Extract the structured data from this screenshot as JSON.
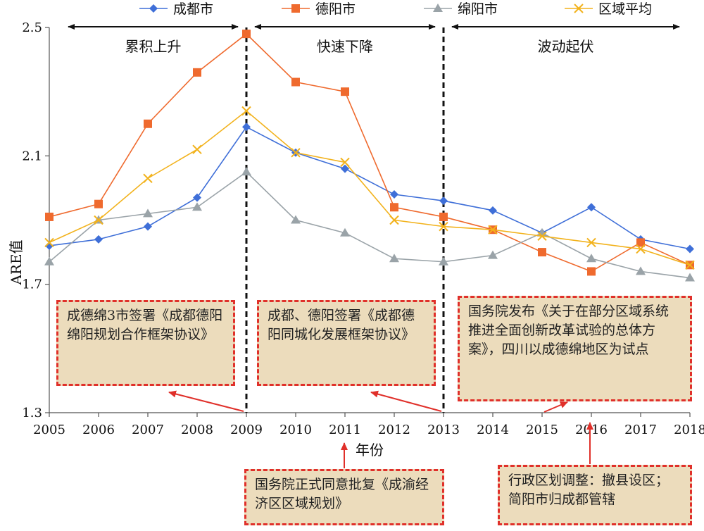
{
  "chart_data": {
    "type": "line",
    "x": [
      "2005",
      "2006",
      "2007",
      "2008",
      "2009",
      "2010",
      "2011",
      "2012",
      "2013",
      "2014",
      "2015",
      "2016",
      "2017",
      "2018"
    ],
    "series": [
      {
        "name": "成都市",
        "color": "#3f6fd8",
        "marker": "diamond",
        "values": [
          1.82,
          1.84,
          1.88,
          1.97,
          2.19,
          2.11,
          2.06,
          1.98,
          1.96,
          1.93,
          1.86,
          1.94,
          1.84,
          1.81
        ]
      },
      {
        "name": "德阳市",
        "color": "#ef6a2e",
        "marker": "square",
        "values": [
          1.91,
          1.95,
          2.2,
          2.36,
          2.48,
          2.33,
          2.3,
          1.94,
          1.91,
          1.87,
          1.8,
          1.74,
          1.83,
          1.76
        ]
      },
      {
        "name": "绵阳市",
        "color": "#9aa3a8",
        "marker": "triangle",
        "values": [
          1.77,
          1.9,
          1.92,
          1.94,
          2.05,
          1.9,
          1.86,
          1.78,
          1.77,
          1.79,
          1.86,
          1.78,
          1.74,
          1.72
        ]
      },
      {
        "name": "区域平均",
        "color": "#f2b21c",
        "marker": "x",
        "values": [
          1.83,
          1.9,
          2.03,
          2.12,
          2.24,
          2.11,
          2.08,
          1.9,
          1.88,
          1.87,
          1.85,
          1.83,
          1.81,
          1.76
        ]
      }
    ],
    "xlabel": "年份",
    "ylabel": "ARE值",
    "ylim": [
      1.3,
      2.5
    ],
    "yticks": [
      "1.3",
      "1.7",
      "2.1",
      "2.5"
    ],
    "legend": "top",
    "grid": false,
    "dividers": [
      "2009",
      "2013"
    ],
    "periods": [
      {
        "label": "累积上升",
        "from": "2005",
        "to": "2009"
      },
      {
        "label": "快速下降",
        "from": "2009",
        "to": "2013"
      },
      {
        "label": "波动起伏",
        "from": "2013",
        "to": "2018"
      }
    ],
    "annotations": [
      {
        "text": "成德绵3市签署《成都德阳绵阳规划合作框架协议》",
        "year": "2009"
      },
      {
        "text": "成都、德阳签署《成都德阳同城化发展框架协议》",
        "year": "2013"
      },
      {
        "text": "国务院发布《关于在部分区域系统推进全面创新改革试验的总体方案》，四川以成德绵地区为试点",
        "year": "2015"
      },
      {
        "text": "国务院正式同意批复《成渝经济区区域规划》",
        "year": "2011"
      },
      {
        "text": "行政区划调整：撤县设区；简阳市归成都管辖",
        "year": "2016"
      }
    ]
  }
}
